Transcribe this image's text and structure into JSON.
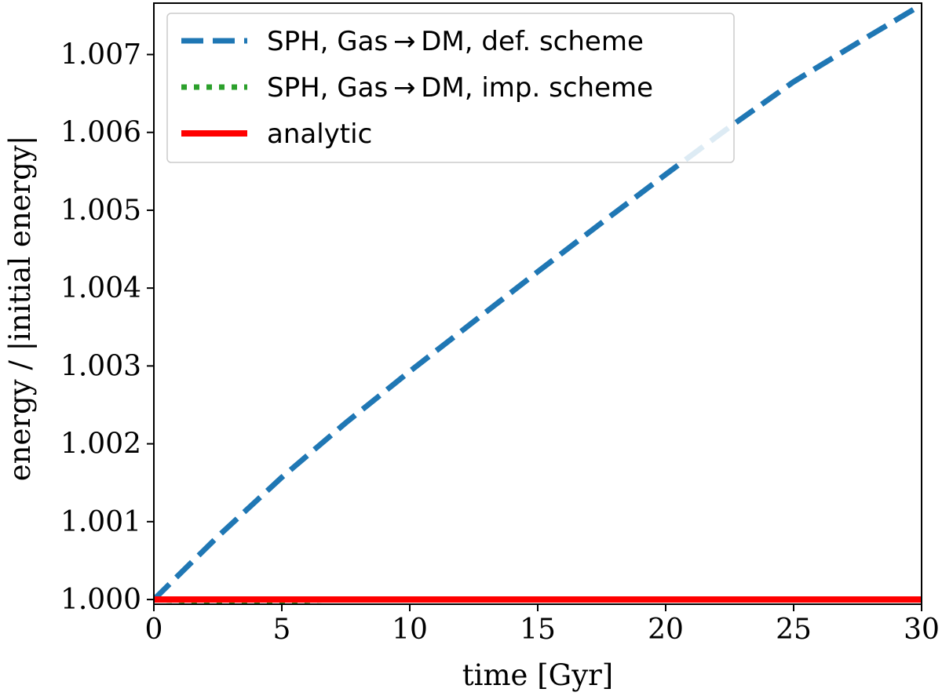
{
  "chart_data": {
    "type": "line",
    "title": "",
    "xlabel": "time [Gyr]",
    "ylabel": "energy / |initial energy|",
    "xlim": [
      0,
      30
    ],
    "ylim": [
      0.99994,
      1.00766
    ],
    "xticks": [
      0,
      5,
      10,
      15,
      20,
      25,
      30
    ],
    "yticks": [
      1.0,
      1.001,
      1.002,
      1.003,
      1.004,
      1.005,
      1.006,
      1.007
    ],
    "xtick_labels": [
      "0",
      "5",
      "10",
      "15",
      "20",
      "25",
      "30"
    ],
    "ytick_labels": [
      "1.000",
      "1.001",
      "1.002",
      "1.003",
      "1.004",
      "1.005",
      "1.006",
      "1.007"
    ],
    "grid": false,
    "legend_position": "top-left",
    "series": [
      {
        "name": "SPH, Gas → DM, def. scheme",
        "color": "#1f77b4",
        "style": "dashed",
        "x": [
          0,
          2.5,
          5,
          7.5,
          10,
          12.5,
          15,
          17.5,
          20,
          22.5,
          25,
          27.5,
          30
        ],
        "y": [
          1.0,
          1.00081,
          1.00157,
          1.00227,
          1.00293,
          1.00357,
          1.00421,
          1.00484,
          1.00546,
          1.00607,
          1.00665,
          1.00715,
          1.00764
        ]
      },
      {
        "name": "SPH, Gas → DM, imp. scheme",
        "color": "#2ca02c",
        "style": "dotted",
        "x": [
          0,
          5,
          10,
          15,
          20,
          25,
          30
        ],
        "y": [
          1.0,
          0.999935,
          0.99987,
          0.999805,
          0.99974,
          0.999675,
          0.99961
        ]
      },
      {
        "name": "analytic",
        "color": "#ff0000",
        "style": "solid",
        "x": [
          0,
          30
        ],
        "y": [
          1.0,
          1.0
        ]
      }
    ]
  }
}
